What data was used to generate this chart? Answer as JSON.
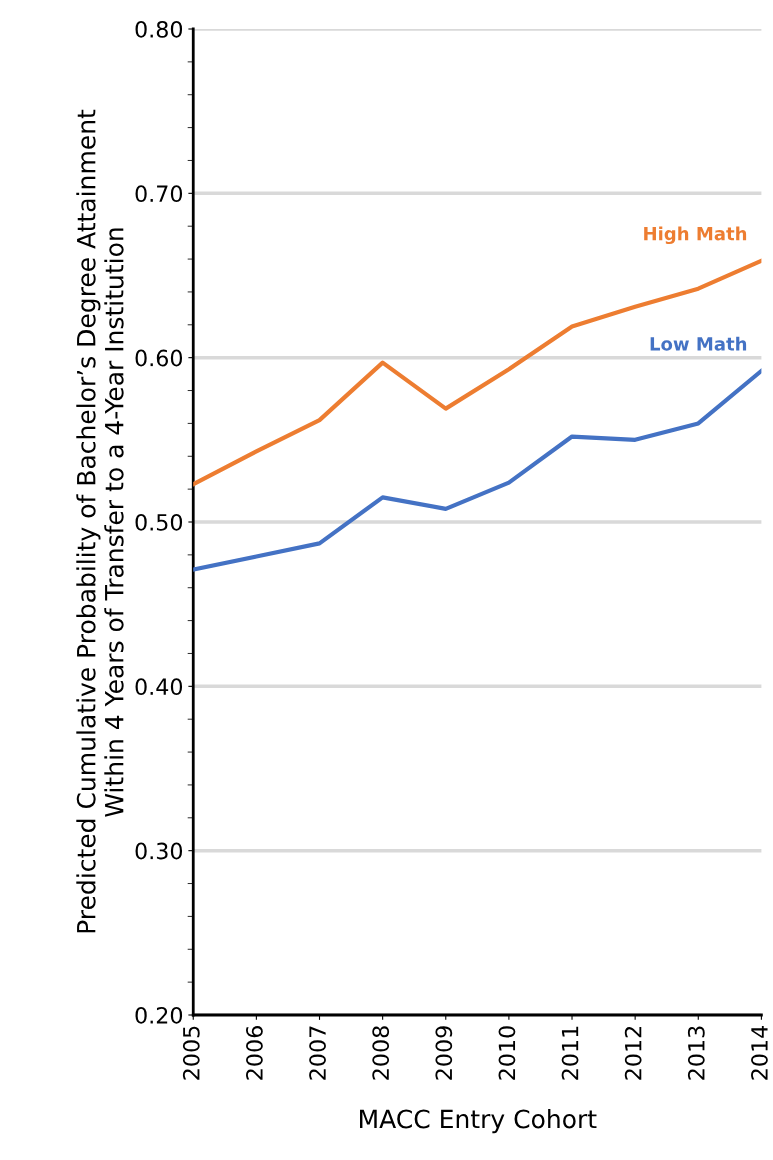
{
  "chart_data": {
    "type": "line",
    "xlabel": "MACC Entry Cohort",
    "ylabel": "Predicted Cumulative Probability of Bachelor’s Degree Attainment\nWithin 4 Years of Transfer to a 4-Year Institution",
    "categories": [
      "2005",
      "2006",
      "2007",
      "2008",
      "2009",
      "2010",
      "2011",
      "2012",
      "2013",
      "2014"
    ],
    "series": [
      {
        "name": "High Math",
        "color": "#ed7d31",
        "values": [
          0.523,
          0.543,
          0.562,
          0.597,
          0.569,
          0.593,
          0.619,
          0.631,
          0.642,
          0.659
        ]
      },
      {
        "name": "Low Math",
        "color": "#4472c4",
        "values": [
          0.471,
          0.479,
          0.487,
          0.515,
          0.508,
          0.524,
          0.552,
          0.55,
          0.56,
          0.592
        ]
      }
    ],
    "ylim": [
      0.2,
      0.8
    ],
    "yticks": [
      {
        "value": 0.2,
        "label": "0.20"
      },
      {
        "value": 0.3,
        "label": "0.30"
      },
      {
        "value": 0.4,
        "label": "0.40"
      },
      {
        "value": 0.5,
        "label": "0.50"
      },
      {
        "value": 0.6,
        "label": "0.60"
      },
      {
        "value": 0.7,
        "label": "0.70"
      },
      {
        "value": 0.8,
        "label": "0.80"
      }
    ],
    "grid": "y",
    "legend": false,
    "marker": "none",
    "line_style": "solid"
  }
}
